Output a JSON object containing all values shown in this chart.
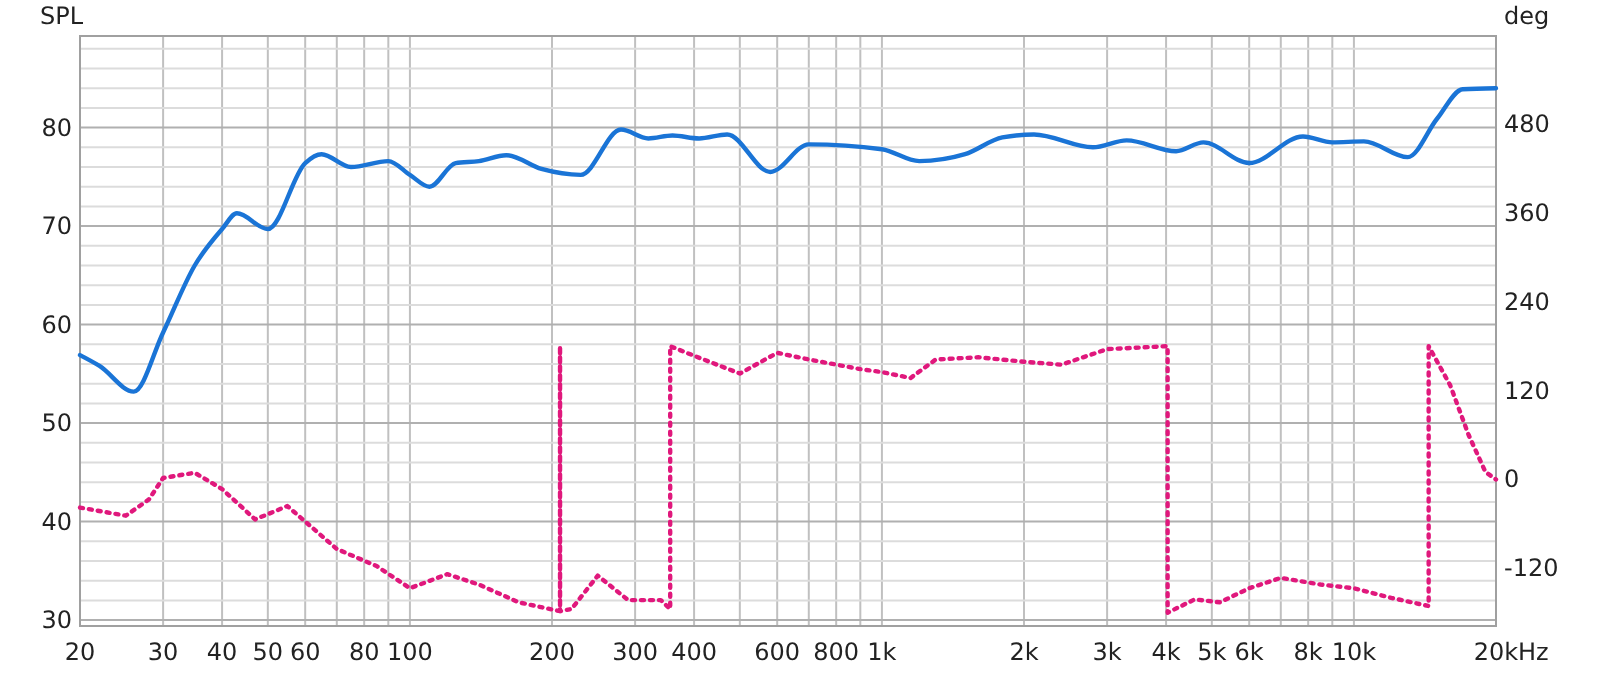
{
  "chart_data": {
    "type": "line",
    "ylabel": "SPL",
    "y2label": "deg",
    "log": "x",
    "xlabel": "Hz",
    "grid": true,
    "xlim": [
      20,
      20000
    ],
    "xticks": [
      20,
      30,
      40,
      50,
      60,
      {
        "value": 70,
        "label": null
      },
      80,
      {
        "value": 90,
        "label": null
      },
      100,
      200,
      300,
      400,
      {
        "value": 500,
        "label": null
      },
      600,
      {
        "value": 700,
        "label": null
      },
      800,
      {
        "value": 900,
        "label": null
      },
      {
        "value": 1000,
        "label": "1k"
      },
      {
        "value": 2000,
        "label": "2k"
      },
      {
        "value": 3000,
        "label": "3k"
      },
      {
        "value": 4000,
        "label": "4k"
      },
      {
        "value": 5000,
        "label": "5k"
      },
      {
        "value": 6000,
        "label": "6k"
      },
      {
        "value": 7000,
        "label": null
      },
      {
        "value": 8000,
        "label": "8k"
      },
      {
        "value": 9000,
        "label": null
      },
      {
        "value": 10000,
        "label": "10k"
      },
      {
        "value": 20000,
        "label": "20k"
      }
    ],
    "ylim": [
      29.4,
      89.3
    ],
    "yticks": [
      30,
      {
        "value": 32,
        "label": null
      },
      {
        "value": 34,
        "label": null
      },
      {
        "value": 36,
        "label": null
      },
      {
        "value": 38,
        "label": null
      },
      40,
      {
        "value": 42,
        "label": null
      },
      {
        "value": 44,
        "label": null
      },
      {
        "value": 46,
        "label": null
      },
      {
        "value": 48,
        "label": null
      },
      50,
      {
        "value": 52,
        "label": null
      },
      {
        "value": 54,
        "label": null
      },
      {
        "value": 56,
        "label": null
      },
      {
        "value": 58,
        "label": null
      },
      60,
      {
        "value": 62,
        "label": null
      },
      {
        "value": 64,
        "label": null
      },
      {
        "value": 66,
        "label": null
      },
      {
        "value": 68,
        "label": null
      },
      70,
      {
        "value": 72,
        "label": null
      },
      {
        "value": 74,
        "label": null
      },
      {
        "value": 76,
        "label": null
      },
      {
        "value": 78,
        "label": null
      },
      80,
      {
        "value": 82,
        "label": null
      },
      {
        "value": 84,
        "label": null
      },
      {
        "value": 86,
        "label": null
      },
      {
        "value": 88,
        "label": null
      }
    ],
    "y2lim": [
      -198,
      599
    ],
    "y2ticks": [
      -120,
      0,
      120,
      240,
      360,
      480
    ],
    "series": [
      {
        "color": "#1a74d6",
        "line_style": "solid",
        "x": [
          20,
          22,
          26,
          30,
          35,
          40,
          43,
          50,
          60,
          65,
          75,
          90,
          100,
          110,
          125,
          140,
          160,
          190,
          230,
          280,
          320,
          360,
          410,
          470,
          580,
          700,
          1000,
          1200,
          1500,
          1800,
          2100,
          2800,
          3300,
          4200,
          4800,
          6000,
          7800,
          9000,
          10500,
          13000,
          15000,
          17000,
          20000
        ],
        "values": [
          56.9,
          55.8,
          53.2,
          59.2,
          66,
          69.7,
          71.3,
          69.7,
          76.4,
          77.3,
          76,
          76.6,
          75.2,
          74,
          76.4,
          76.6,
          77.2,
          75.8,
          75.2,
          79.8,
          78.9,
          79.2,
          78.9,
          79.3,
          75.5,
          78.3,
          77.8,
          76.6,
          77.3,
          79,
          79.3,
          78,
          78.7,
          77.6,
          78.5,
          76.4,
          79.1,
          78.5,
          78.6,
          77,
          80.9,
          83.9,
          84
        ]
      },
      {
        "color": "#e0187c",
        "line_style": "dotted",
        "axis": "y2",
        "x": [
          20,
          25,
          28,
          30,
          35,
          40,
          47,
          55,
          70,
          85,
          100,
          120,
          140,
          170,
          208,
          208,
          208,
          220,
          250,
          290,
          340,
          356,
          356,
          400,
          500,
          600,
          700,
          900,
          1000,
          1150,
          1300,
          1600,
          2000,
          2400,
          3000,
          4030,
          4030,
          4600,
          5200,
          6000,
          7000,
          8500,
          10000,
          12000,
          14400,
          14400,
          16000,
          17500,
          19000,
          20000
        ],
        "values": [
          -38,
          -49,
          -27,
          2,
          9,
          -13,
          -54,
          -36,
          -94,
          -117,
          -147,
          -128,
          -142,
          -166,
          -178,
          180,
          -178,
          -175,
          -130,
          -163,
          -163,
          -175,
          180,
          167,
          143,
          171,
          162,
          149,
          145,
          137,
          162,
          165,
          159,
          155,
          176,
          180,
          -180,
          -162,
          -166,
          -147,
          -133,
          -142,
          -147,
          -160,
          -171,
          180,
          127,
          60,
          10,
          0
        ]
      }
    ]
  }
}
